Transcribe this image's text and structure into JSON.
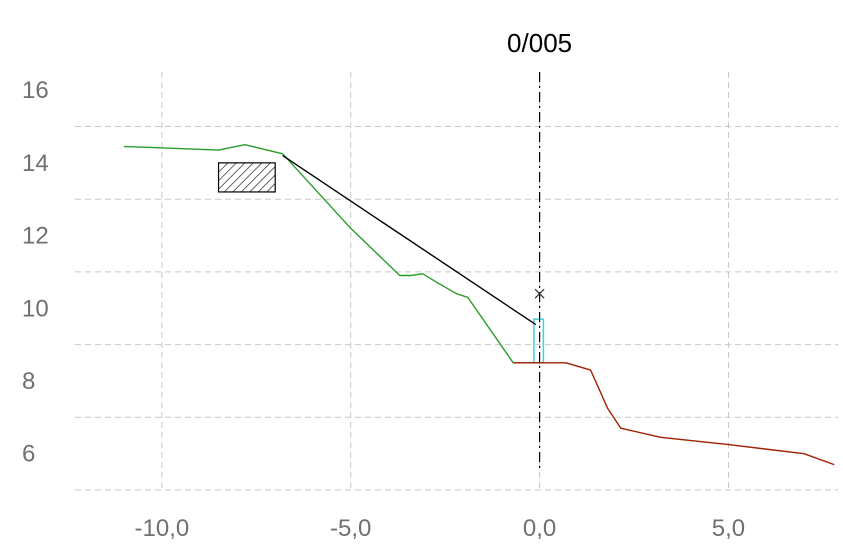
{
  "chart_data": {
    "type": "line",
    "title": "0/005",
    "xlim": [
      -12.3,
      7.9
    ],
    "ylim": [
      5.0,
      16.5
    ],
    "x_ticks": [
      {
        "value": -10,
        "label": "-10,0"
      },
      {
        "value": -5,
        "label": "-5,0"
      },
      {
        "value": 0,
        "label": "0,0"
      },
      {
        "value": 5,
        "label": "5,0"
      }
    ],
    "y_ticks": [
      {
        "value": 6,
        "label": "6"
      },
      {
        "value": 8,
        "label": "8"
      },
      {
        "value": 10,
        "label": "10"
      },
      {
        "value": 12,
        "label": "12"
      },
      {
        "value": 14,
        "label": "14"
      },
      {
        "value": 16,
        "label": "16"
      }
    ],
    "grid": true,
    "reference_line_x": 0,
    "series": [
      {
        "color": "#2a9d2a",
        "points": [
          [
            -11.0,
            14.45
          ],
          [
            -8.5,
            14.35
          ],
          [
            -7.8,
            14.5
          ],
          [
            -6.8,
            14.25
          ],
          [
            -5.0,
            12.2
          ],
          [
            -3.7,
            10.9
          ],
          [
            -3.4,
            10.9
          ],
          [
            -3.1,
            10.95
          ],
          [
            -2.7,
            10.7
          ],
          [
            -2.2,
            10.4
          ],
          [
            -1.9,
            10.3
          ],
          [
            -0.7,
            8.5
          ],
          [
            0.0,
            8.5
          ]
        ]
      },
      {
        "color": "#a02000",
        "points": [
          [
            -0.7,
            8.5
          ],
          [
            0.7,
            8.5
          ],
          [
            1.35,
            8.3
          ],
          [
            1.8,
            7.25
          ],
          [
            2.15,
            6.7
          ],
          [
            3.2,
            6.45
          ],
          [
            5.0,
            6.25
          ],
          [
            7.0,
            6.0
          ],
          [
            7.8,
            5.7
          ]
        ]
      },
      {
        "color": "#000000",
        "points": [
          [
            -6.8,
            14.2
          ],
          [
            -0.1,
            9.55
          ]
        ]
      }
    ],
    "shapes": [
      {
        "kind": "hatched-rectangle",
        "x": [
          -8.5,
          -7.0
        ],
        "y": [
          13.2,
          14.0
        ],
        "color": "#000000"
      },
      {
        "kind": "rectangle-outline",
        "x": [
          -0.15,
          0.1
        ],
        "y": [
          8.5,
          9.7
        ],
        "color": "#40d0e0"
      },
      {
        "kind": "cross-marker",
        "x": 0.0,
        "y": 10.4,
        "color": "#303030"
      }
    ]
  }
}
